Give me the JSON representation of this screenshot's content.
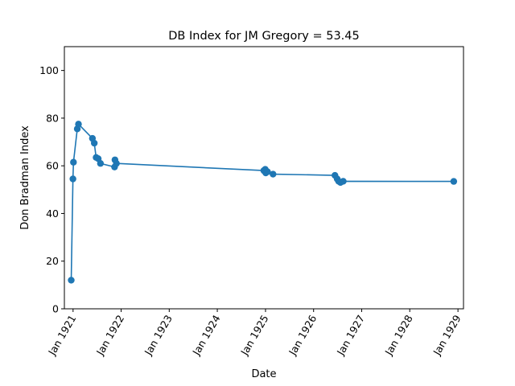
{
  "chart_data": {
    "type": "line",
    "title": "DB Index for JM Gregory = 53.45",
    "xlabel": "Date",
    "ylabel": "Don Bradman Index",
    "xlim": [
      "1920-10-27",
      "1929-02-12"
    ],
    "ylim": [
      0,
      110
    ],
    "xticks": [
      {
        "date": "1921-01-01",
        "label": "Jan 1921"
      },
      {
        "date": "1922-01-01",
        "label": "Jan 1922"
      },
      {
        "date": "1923-01-01",
        "label": "Jan 1923"
      },
      {
        "date": "1924-01-01",
        "label": "Jan 1924"
      },
      {
        "date": "1925-01-01",
        "label": "Jan 1925"
      },
      {
        "date": "1926-01-01",
        "label": "Jan 1926"
      },
      {
        "date": "1927-01-01",
        "label": "Jan 1927"
      },
      {
        "date": "1928-01-01",
        "label": "Jan 1928"
      },
      {
        "date": "1929-01-01",
        "label": "Jan 1929"
      }
    ],
    "yticks": [
      {
        "value": 0,
        "label": "0"
      },
      {
        "value": 20,
        "label": "20"
      },
      {
        "value": 40,
        "label": "40"
      },
      {
        "value": 60,
        "label": "60"
      },
      {
        "value": 80,
        "label": "80"
      },
      {
        "value": 100,
        "label": "100"
      }
    ],
    "grid": false,
    "series": [
      {
        "color": "#1f77b4",
        "points": [
          {
            "x": "1920-12-18",
            "y": 12.0
          },
          {
            "x": "1920-12-31",
            "y": 54.5
          },
          {
            "x": "1921-01-04",
            "y": 61.5
          },
          {
            "x": "1921-02-02",
            "y": 75.5
          },
          {
            "x": "1921-02-11",
            "y": 77.5
          },
          {
            "x": "1921-05-28",
            "y": 71.5
          },
          {
            "x": "1921-06-11",
            "y": 69.5
          },
          {
            "x": "1921-06-25",
            "y": 63.5
          },
          {
            "x": "1921-07-11",
            "y": 63.0
          },
          {
            "x": "1921-07-28",
            "y": 61.0
          },
          {
            "x": "1921-11-12",
            "y": 59.5
          },
          {
            "x": "1921-11-15",
            "y": 62.5
          },
          {
            "x": "1921-11-26",
            "y": 61.0
          },
          {
            "x": "1924-12-19",
            "y": 58.0
          },
          {
            "x": "1924-12-30",
            "y": 58.5
          },
          {
            "x": "1925-01-03",
            "y": 57.0
          },
          {
            "x": "1925-01-16",
            "y": 57.5
          },
          {
            "x": "1925-02-27",
            "y": 56.5
          },
          {
            "x": "1926-06-12",
            "y": 56.0
          },
          {
            "x": "1926-06-29",
            "y": 54.5
          },
          {
            "x": "1926-07-10",
            "y": 53.5
          },
          {
            "x": "1926-07-24",
            "y": 53.0
          },
          {
            "x": "1926-08-14",
            "y": 53.5
          },
          {
            "x": "1928-11-30",
            "y": 53.45
          }
        ]
      }
    ]
  }
}
